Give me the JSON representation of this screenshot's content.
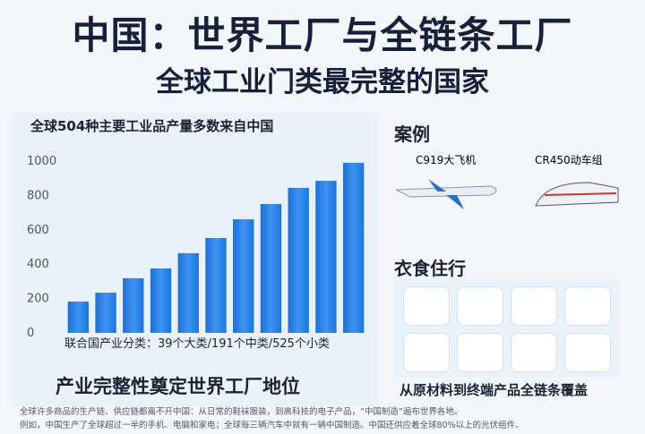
{
  "header": {
    "title": "中国：世界工厂与全链条工厂",
    "subtitle": "全球工业门类最完整的国家"
  },
  "chart_data": {
    "type": "bar",
    "title": "全球504种主要工业品产量多数来自中国",
    "categories": [
      null,
      null,
      null,
      null,
      null,
      null,
      null,
      null,
      null,
      null,
      null
    ],
    "values": [
      182,
      234,
      318,
      375,
      464,
      552,
      661,
      750,
      844,
      885,
      990
    ],
    "color": "#2f86e8",
    "ylim": [
      0,
      1000
    ],
    "yticks": [
      0,
      200,
      400,
      600,
      800,
      1000
    ],
    "grid": false,
    "x_label": "联合国产业分类：39个大类/191个中类/525个小类"
  },
  "left_caption": "产业完整性奠定世界工厂地位",
  "cases": {
    "title": "案例",
    "items": [
      "C919大飞机",
      "CR450动车组"
    ]
  },
  "daily": {
    "title": "衣食住行",
    "caption": "从原材料到终端产品全链条覆盖"
  },
  "footnote": [
    "全球许多商品的生产链、供应链都离不开中国：从日常的鞋袜服装，到高科技的电子产品，“中国制造”遍布世界各地。",
    "例如，中国生产了全球超过一半的手机、电脑和家电；全球每三辆汽车中就有一辆中国制造。中国还供应着全球80%以上的光伏组件、"
  ]
}
